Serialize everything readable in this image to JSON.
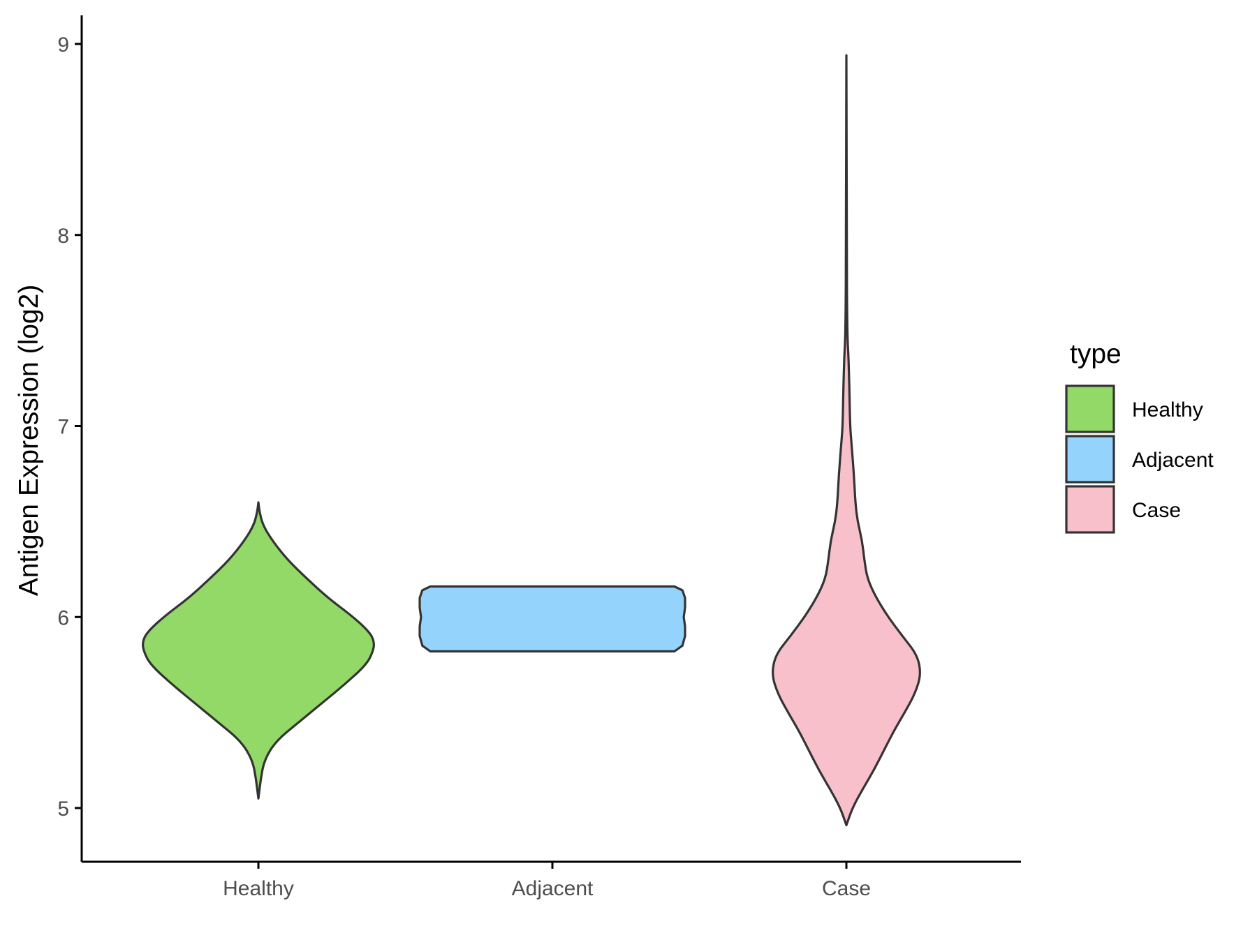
{
  "chart_data": {
    "type": "violin",
    "title": "",
    "xlabel": "",
    "ylabel": "Antigen Expression (log2)",
    "ylim": [
      4.7,
      9.15
    ],
    "yticks": [
      5,
      6,
      7,
      8,
      9
    ],
    "categories": [
      "Healthy",
      "Adjacent",
      "Case"
    ],
    "colors": {
      "Healthy": "#93d968",
      "Adjacent": "#93d3fc",
      "Case": "#f7c0cb"
    },
    "outline_color": "#333333",
    "grid": false,
    "legend": {
      "title": "type",
      "position": "right",
      "entries": [
        "Healthy",
        "Adjacent",
        "Case"
      ]
    },
    "series": [
      {
        "category": "Healthy",
        "min": 5.05,
        "max": 6.6,
        "profile": [
          [
            5.05,
            0.0
          ],
          [
            5.15,
            0.02
          ],
          [
            5.25,
            0.05
          ],
          [
            5.35,
            0.15
          ],
          [
            5.45,
            0.35
          ],
          [
            5.55,
            0.55
          ],
          [
            5.65,
            0.75
          ],
          [
            5.75,
            0.93
          ],
          [
            5.82,
            0.99
          ],
          [
            5.87,
            1.0
          ],
          [
            5.92,
            0.96
          ],
          [
            6.0,
            0.82
          ],
          [
            6.1,
            0.6
          ],
          [
            6.2,
            0.42
          ],
          [
            6.3,
            0.25
          ],
          [
            6.4,
            0.12
          ],
          [
            6.48,
            0.04
          ],
          [
            6.55,
            0.01
          ],
          [
            6.6,
            0.0
          ]
        ]
      },
      {
        "category": "Adjacent",
        "min": 5.82,
        "max": 6.16,
        "profile": [
          [
            5.82,
            0.92
          ],
          [
            5.85,
            0.98
          ],
          [
            5.9,
            1.0
          ],
          [
            5.95,
            1.0
          ],
          [
            6.0,
            0.99
          ],
          [
            6.05,
            1.0
          ],
          [
            6.1,
            1.0
          ],
          [
            6.14,
            0.98
          ],
          [
            6.16,
            0.92
          ]
        ]
      },
      {
        "category": "Case",
        "min": 4.91,
        "max": 8.94,
        "profile": [
          [
            4.91,
            0.0
          ],
          [
            5.0,
            0.08
          ],
          [
            5.1,
            0.22
          ],
          [
            5.2,
            0.37
          ],
          [
            5.3,
            0.5
          ],
          [
            5.4,
            0.63
          ],
          [
            5.5,
            0.78
          ],
          [
            5.6,
            0.92
          ],
          [
            5.7,
            1.0
          ],
          [
            5.8,
            0.95
          ],
          [
            5.9,
            0.75
          ],
          [
            6.0,
            0.56
          ],
          [
            6.1,
            0.4
          ],
          [
            6.2,
            0.28
          ],
          [
            6.3,
            0.24
          ],
          [
            6.4,
            0.21
          ],
          [
            6.5,
            0.15
          ],
          [
            6.6,
            0.12
          ],
          [
            6.75,
            0.1
          ],
          [
            6.9,
            0.07
          ],
          [
            7.0,
            0.05
          ],
          [
            7.2,
            0.04
          ],
          [
            7.35,
            0.03
          ],
          [
            7.5,
            0.01
          ],
          [
            8.0,
            0.005
          ],
          [
            8.94,
            0.0
          ]
        ]
      }
    ]
  }
}
